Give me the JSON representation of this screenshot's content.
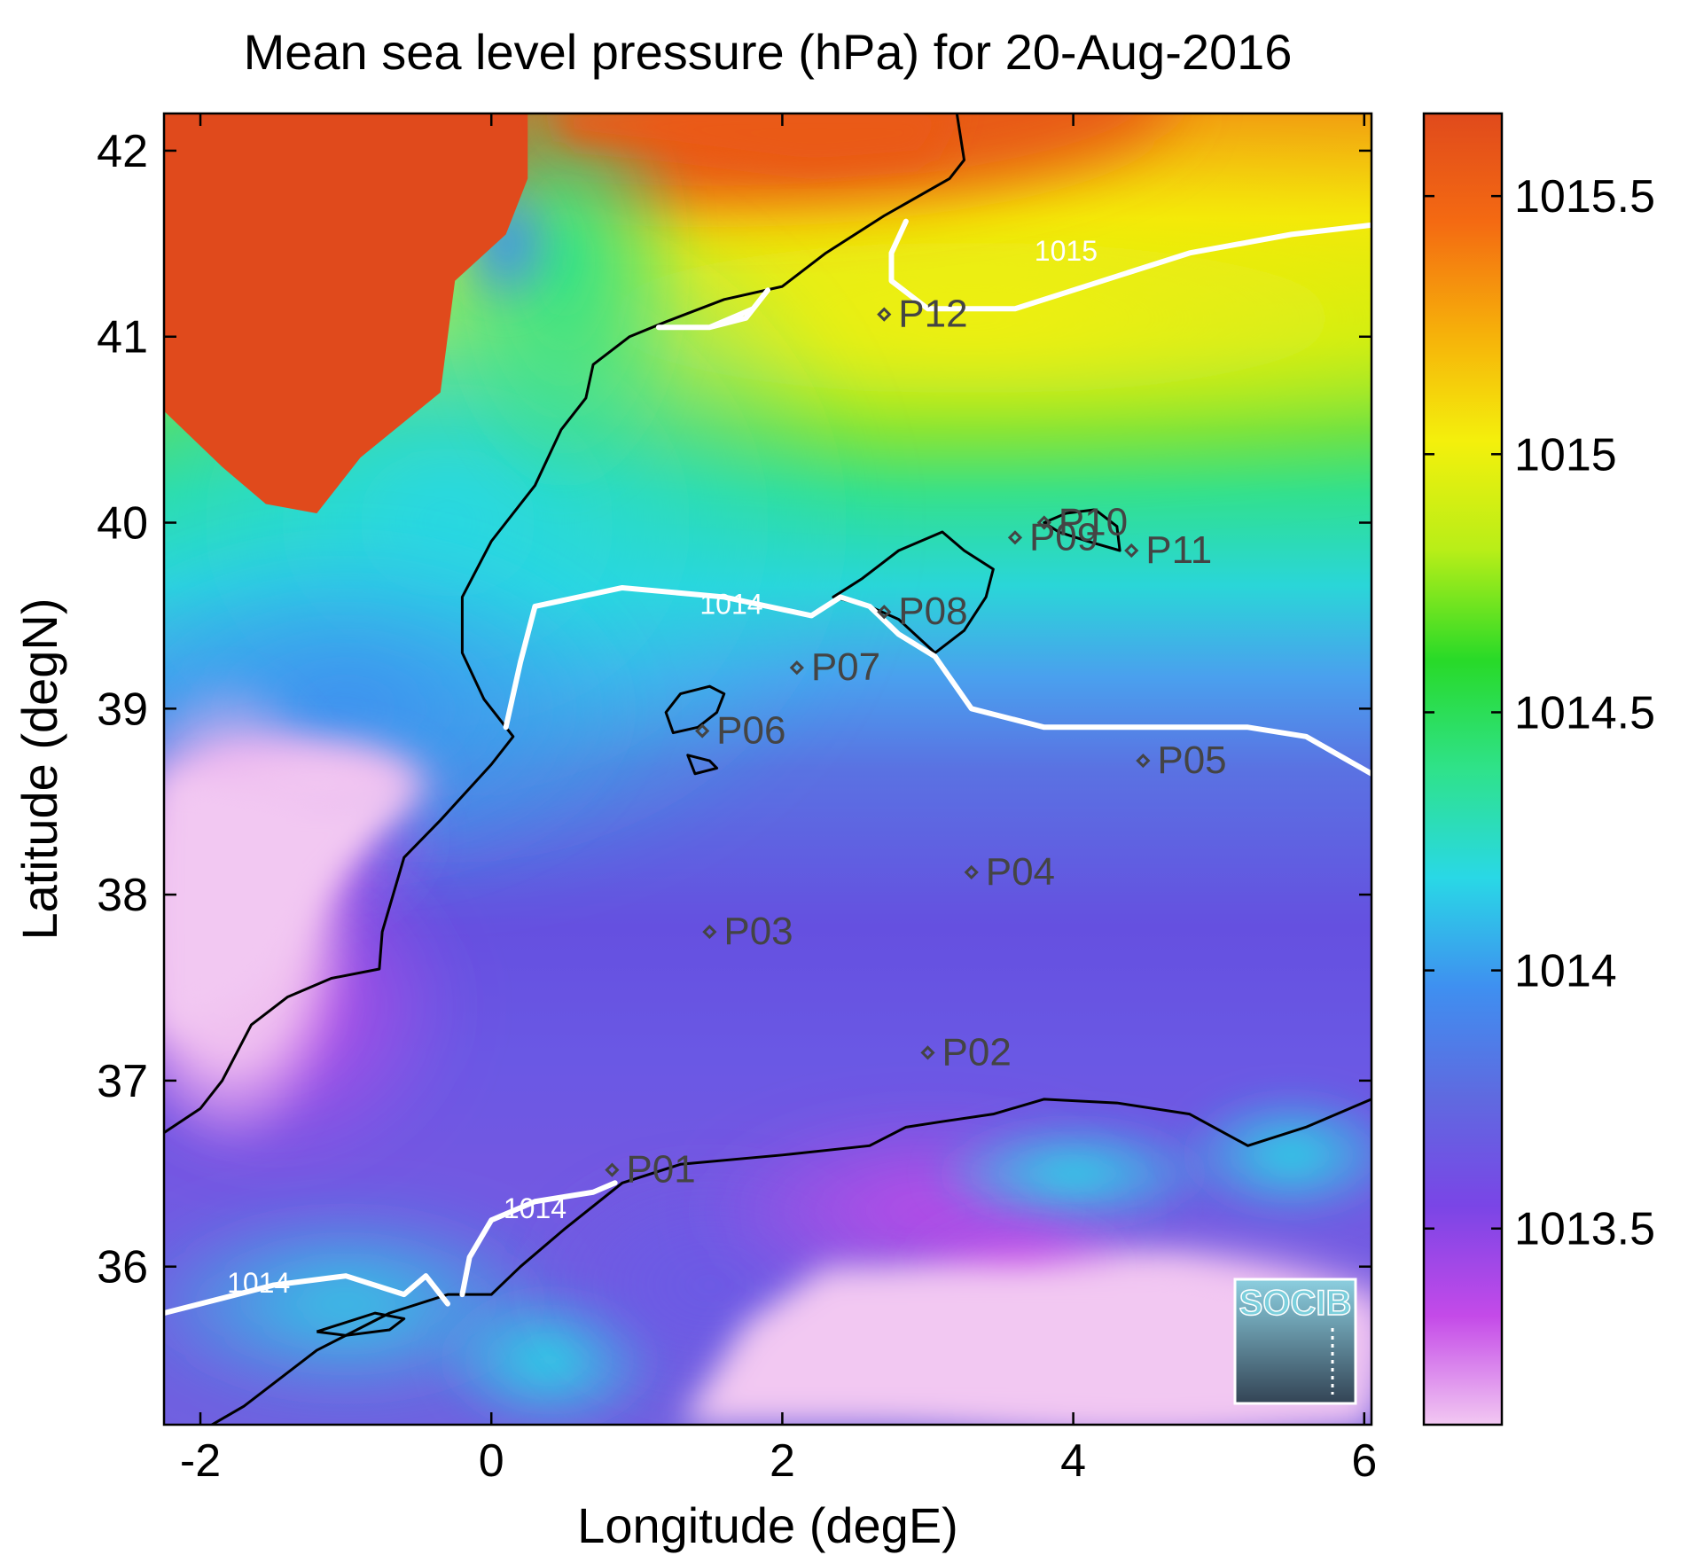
{
  "title": "Mean sea level pressure (hPa) for 20-Aug-2016",
  "xaxis": {
    "label": "Longitude (degE)",
    "range": [
      -2.25,
      6.05
    ],
    "ticks": [
      {
        "value": -2,
        "label": "-2"
      },
      {
        "value": 0,
        "label": "0"
      },
      {
        "value": 2,
        "label": "2"
      },
      {
        "value": 4,
        "label": "4"
      },
      {
        "value": 6,
        "label": "6"
      }
    ]
  },
  "yaxis": {
    "label": "Latitude (degN)",
    "range": [
      35.15,
      42.2
    ],
    "ticks": [
      {
        "value": 36,
        "label": "36"
      },
      {
        "value": 37,
        "label": "37"
      },
      {
        "value": 38,
        "label": "38"
      },
      {
        "value": 39,
        "label": "39"
      },
      {
        "value": 40,
        "label": "40"
      },
      {
        "value": 41,
        "label": "41"
      },
      {
        "value": 42,
        "label": "42"
      }
    ]
  },
  "colorbar": {
    "range": [
      1013.12,
      1015.66
    ],
    "ticks": [
      {
        "value": 1013.5,
        "label": "1013.5"
      },
      {
        "value": 1014,
        "label": "1014"
      },
      {
        "value": 1014.5,
        "label": "1014.5"
      },
      {
        "value": 1015,
        "label": "1015"
      },
      {
        "value": 1015.5,
        "label": "1015.5"
      }
    ],
    "colors": [
      "#f2c8f2",
      "#c44ae8",
      "#7a45e6",
      "#5f6ae0",
      "#3f8ff0",
      "#29d8e6",
      "#2fe28a",
      "#28da28",
      "#b8ee18",
      "#f4f00c",
      "#f6b00a",
      "#f46a12",
      "#e04a1c"
    ]
  },
  "stations": [
    {
      "id": "P01",
      "lon": 0.83,
      "lat": 36.52
    },
    {
      "id": "P02",
      "lon": 3.0,
      "lat": 37.15
    },
    {
      "id": "P03",
      "lon": 1.5,
      "lat": 37.8
    },
    {
      "id": "P04",
      "lon": 3.3,
      "lat": 38.12
    },
    {
      "id": "P05",
      "lon": 4.48,
      "lat": 38.72
    },
    {
      "id": "P06",
      "lon": 1.45,
      "lat": 38.88
    },
    {
      "id": "P07",
      "lon": 2.1,
      "lat": 39.22
    },
    {
      "id": "P08",
      "lon": 2.7,
      "lat": 39.52
    },
    {
      "id": "P09",
      "lon": 3.6,
      "lat": 39.92
    },
    {
      "id": "P10",
      "lon": 3.8,
      "lat": 40.0
    },
    {
      "id": "P11",
      "lon": 4.4,
      "lat": 39.85
    },
    {
      "id": "P12",
      "lon": 2.7,
      "lat": 41.12
    }
  ],
  "contours": [
    {
      "label": "1015",
      "level": 1015
    },
    {
      "label": "1014",
      "level": 1014
    },
    {
      "label": "1014",
      "level": 1014
    },
    {
      "label": "1014",
      "level": 1014
    },
    {
      "label": "1014",
      "level": 1014
    }
  ],
  "logo": {
    "text": "SOCIB"
  }
}
